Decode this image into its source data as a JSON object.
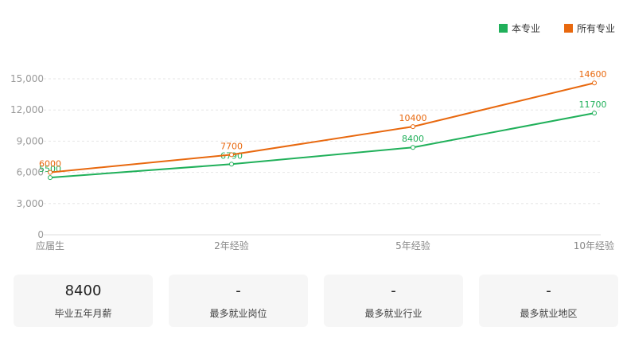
{
  "chart_data": {
    "type": "line",
    "categories": [
      "应届生",
      "2年经验",
      "5年经验",
      "10年经验"
    ],
    "series": [
      {
        "name": "本专业",
        "color": "#20b05a",
        "values": [
          5500,
          6790,
          8400,
          11700
        ]
      },
      {
        "name": "所有专业",
        "color": "#e8680e",
        "values": [
          6000,
          7700,
          10400,
          14600
        ]
      }
    ],
    "yticks": [
      0,
      3000,
      6000,
      9000,
      12000,
      15000
    ],
    "ytick_labels": [
      "0",
      "3,000",
      "6,000",
      "9,000",
      "12,000",
      "15,000"
    ],
    "ylim": [
      0,
      15000
    ],
    "grid": "horizontal dashed",
    "legend_position": "top-right"
  },
  "stats": [
    {
      "value": "8400",
      "label": "毕业五年月薪"
    },
    {
      "value": "-",
      "label": "最多就业岗位"
    },
    {
      "value": "-",
      "label": "最多就业行业"
    },
    {
      "value": "-",
      "label": "最多就业地区"
    }
  ]
}
